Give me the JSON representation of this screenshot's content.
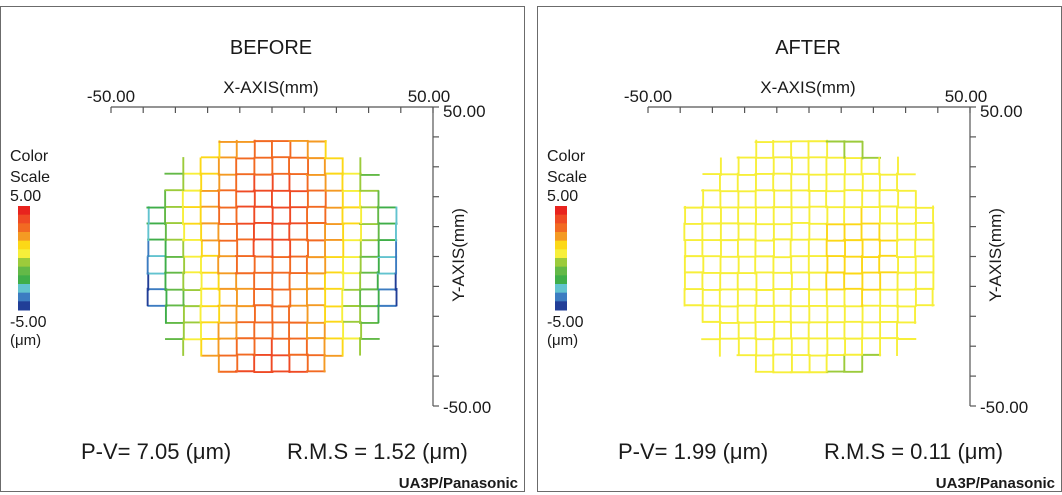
{
  "colors": {
    "scale": [
      "#e8231e",
      "#ef4a24",
      "#f26a22",
      "#f49a23",
      "#fcd817",
      "#f7ef3a",
      "#9ccb3b",
      "#63b947",
      "#3fae49",
      "#62c3cf",
      "#3c7cc1",
      "#213e97"
    ],
    "frame": "#6b6b6b",
    "text": "#1a1a1a"
  },
  "colorbar": {
    "label_line1": "Color",
    "label_line2": "Scale",
    "max": "5.00",
    "min": "-5.00",
    "unit": "(μm)"
  },
  "credit": "UA3P/Panasonic",
  "chart_data": [
    {
      "type": "heatmap",
      "title": "BEFORE",
      "xlabel": "X-AXIS(mm)",
      "ylabel": "Y-AXIS(mm)",
      "xlim": [
        -50,
        50
      ],
      "ylim": [
        -50,
        50
      ],
      "x_ticks": [
        "-50.00",
        "50.00"
      ],
      "y_ticks": [
        "50.00",
        "-50.00"
      ],
      "color_scale": {
        "min": -5,
        "max": 5,
        "unit": "μm"
      },
      "grid_spacing_mm": 5.5,
      "aperture_radius_mm": 41,
      "error_model": "x-gradient saddle, orange ridge at x≈0 falling to blue at x=±41 mm",
      "pv_label": "P-V= 7.05 (μm)",
      "rms_label": "R.M.S = 1.52 (μm)",
      "pv": 7.05,
      "rms": 1.52
    },
    {
      "type": "heatmap",
      "title": "AFTER",
      "xlabel": "X-AXIS(mm)",
      "ylabel": "Y-AXIS(mm)",
      "xlim": [
        -50,
        50
      ],
      "ylim": [
        -50,
        50
      ],
      "x_ticks": [
        "-50.00",
        "50.00"
      ],
      "y_ticks": [
        "50.00",
        "-50.00"
      ],
      "color_scale": {
        "min": -5,
        "max": 5,
        "unit": "μm"
      },
      "grid_spacing_mm": 5.5,
      "aperture_radius_mm": 41,
      "error_model": "flat, yellow-green (≈ -0.5…+1 μm) across the aperture",
      "pv_label": "P-V= 1.99 (μm)",
      "rms_label": "R.M.S = 0.11 (μm)",
      "pv": 1.99,
      "rms": 0.11
    }
  ]
}
